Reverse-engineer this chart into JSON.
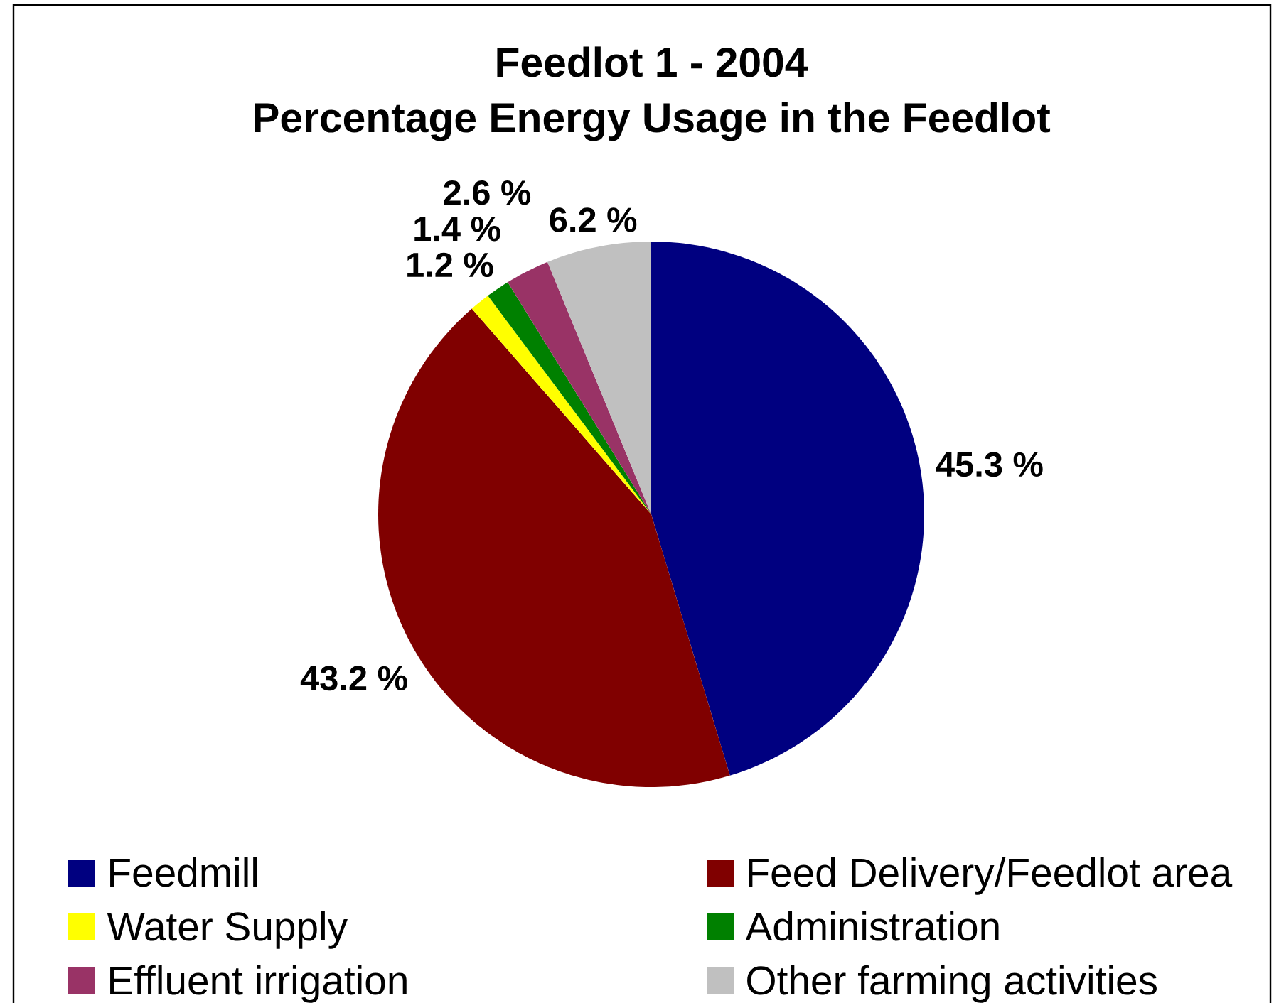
{
  "chart_data": {
    "type": "pie",
    "title": "Feedlot 1 - 2004",
    "subtitle": "Percentage Energy Usage in the Feedlot",
    "categories": [
      "Feedmill",
      "Feed Delivery/Feedlot area",
      "Water Supply",
      "Administration",
      "Effluent irrigation",
      "Other farming activities"
    ],
    "values": [
      45.3,
      43.2,
      1.2,
      1.4,
      2.6,
      6.2
    ],
    "colors": [
      "#000080",
      "#800000",
      "#ffff00",
      "#008000",
      "#993366",
      "#c0c0c0"
    ],
    "value_labels": [
      "45.3 %",
      "43.2 %",
      "1.2 %",
      "1.4 %",
      "2.6 %",
      "6.2 %"
    ],
    "legend": "bottom"
  }
}
